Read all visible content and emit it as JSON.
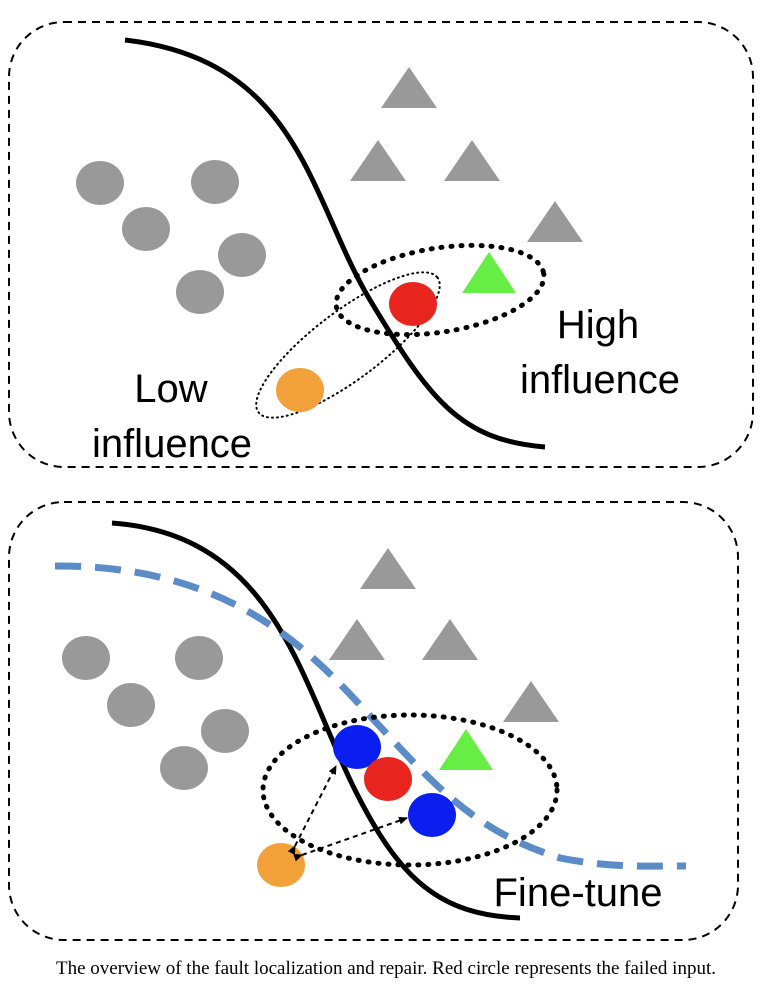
{
  "panels": {
    "top": {
      "label_high_line1": "High",
      "label_high_line2": "influence",
      "label_low_line1": "Low",
      "label_low_line2": "influence"
    },
    "bottom": {
      "label_finetune": "Fine-tune"
    }
  },
  "caption": "The overview of the fault localization and repair. Red circle represents the failed input.",
  "colors": {
    "gray": "#999999",
    "red": "#e8261f",
    "orange": "#f2a03a",
    "green": "#66ee44",
    "blue": "#0a1ef0",
    "dashed_boundary": "#5b8cc8"
  }
}
